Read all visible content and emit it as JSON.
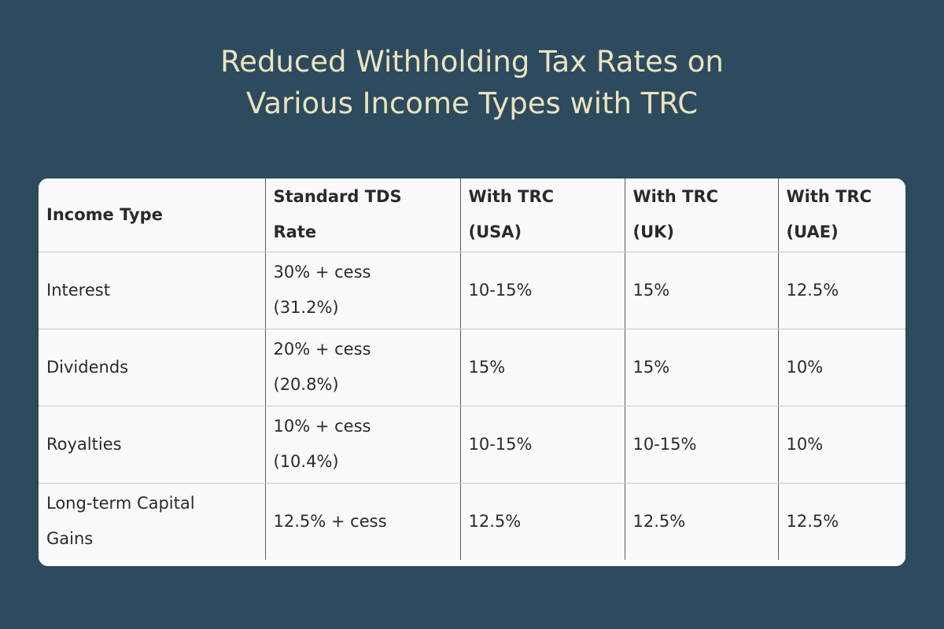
{
  "title": {
    "line1": "Reduced Withholding Tax Rates on",
    "line2": "Various Income Types with TRC"
  },
  "table": {
    "headers": [
      [
        "Income Type"
      ],
      [
        "Standard TDS",
        "Rate"
      ],
      [
        "With TRC",
        "(USA)"
      ],
      [
        "With TRC",
        "(UK)"
      ],
      [
        "With TRC",
        "(UAE)"
      ]
    ],
    "rows": [
      [
        [
          "Interest"
        ],
        [
          "30% + cess",
          "(31.2%)"
        ],
        [
          "10-15%"
        ],
        [
          "15%"
        ],
        [
          "12.5%"
        ]
      ],
      [
        [
          "Dividends"
        ],
        [
          "20% + cess",
          "(20.8%)"
        ],
        [
          "15%"
        ],
        [
          "15%"
        ],
        [
          "10%"
        ]
      ],
      [
        [
          "Royalties"
        ],
        [
          "10% + cess",
          "(10.4%)"
        ],
        [
          "10-15%"
        ],
        [
          "10-15%"
        ],
        [
          "10%"
        ]
      ],
      [
        [
          "Long-term Capital",
          "Gains"
        ],
        [
          "12.5% + cess"
        ],
        [
          "12.5%"
        ],
        [
          "12.5%"
        ],
        [
          "12.5%"
        ]
      ]
    ]
  }
}
